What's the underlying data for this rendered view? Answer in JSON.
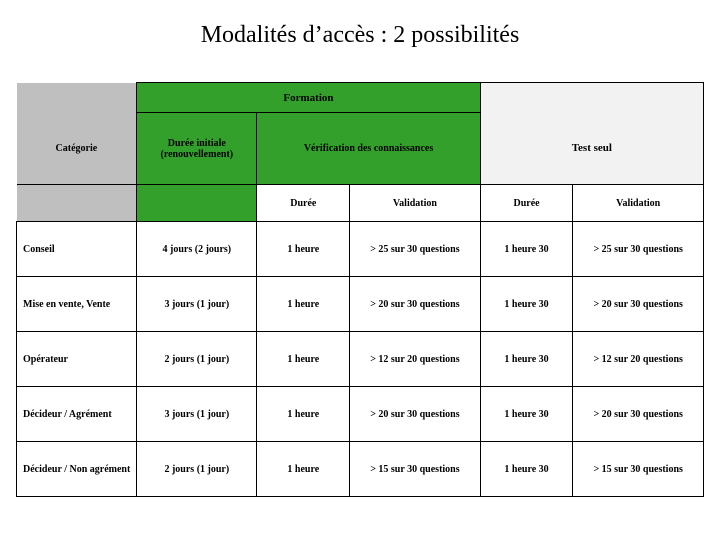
{
  "title": "Modalités d’accès  : 2 possibilités",
  "colors": {
    "green": "#33a02c",
    "grey": "#bfbfbf",
    "light": "#f2f2f2",
    "border": "#000000",
    "text": "#000000",
    "background": "#ffffff"
  },
  "typography": {
    "title_fontsize_pt": 18,
    "header_fontsize_pt": 8,
    "body_fontsize_pt": 7,
    "font_family": "Georgia / serif"
  },
  "header": {
    "formation": "Formation",
    "categorie": "Catégorie",
    "duree_initiale": "Durée initiale\n(renouvellement)",
    "verification": "Vérification des connaissances",
    "test_seul": "Test seul",
    "sub_duree": "Durée",
    "sub_validation": "Validation"
  },
  "columns": [
    "Catégorie",
    "Durée initiale (renouvellement)",
    "Durée",
    "Validation",
    "Durée",
    "Validation"
  ],
  "col_widths_pct": [
    17.5,
    17.5,
    13.5,
    19,
    13.5,
    19
  ],
  "rows": [
    {
      "categorie": "Conseil",
      "duree_initiale": "4 jours (2 jours)",
      "f_duree": "1 heure",
      "f_validation": "> 25 sur 30 questions",
      "t_duree": "1 heure 30",
      "t_validation": "> 25 sur 30 questions"
    },
    {
      "categorie": "Mise en vente, Vente",
      "duree_initiale": "3 jours (1 jour)",
      "f_duree": "1 heure",
      "f_validation": "> 20 sur 30 questions",
      "t_duree": "1 heure 30",
      "t_validation": "> 20 sur 30 questions"
    },
    {
      "categorie": "Opérateur",
      "duree_initiale": "2 jours (1 jour)",
      "f_duree": "1 heure",
      "f_validation": "> 12 sur 20 questions",
      "t_duree": "1 heure 30",
      "t_validation": "> 12 sur 20 questions"
    },
    {
      "categorie": "Décideur  / Agrément",
      "duree_initiale": "3 jours (1 jour)",
      "f_duree": "1 heure",
      "f_validation": "> 20 sur 30 questions",
      "t_duree": "1 heure 30",
      "t_validation": "> 20 sur 30 questions"
    },
    {
      "categorie": "Décideur / Non agrément",
      "duree_initiale": "2 jours (1 jour)",
      "f_duree": "1 heure",
      "f_validation": "> 15 sur 30 questions",
      "t_duree": "1 heure 30",
      "t_validation": "> 15 sur 30 questions"
    }
  ]
}
